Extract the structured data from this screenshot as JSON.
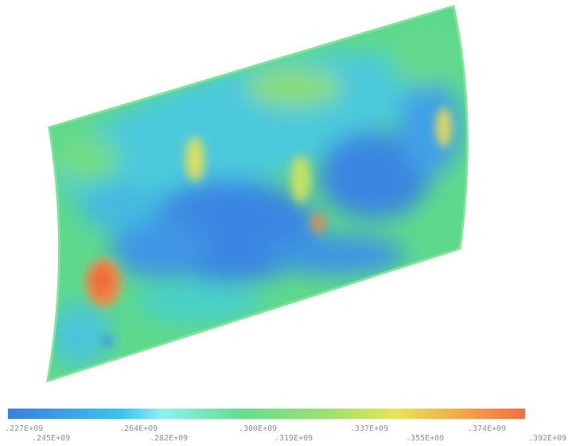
{
  "colorbar": {
    "labels": [
      ".227E+09",
      ".245E+09",
      ".264E+09",
      ".282E+09",
      ".300E+09",
      ".319E+09",
      ".337E+09",
      ".355E+09",
      ".374E+09",
      ".392E+09"
    ]
  }
}
